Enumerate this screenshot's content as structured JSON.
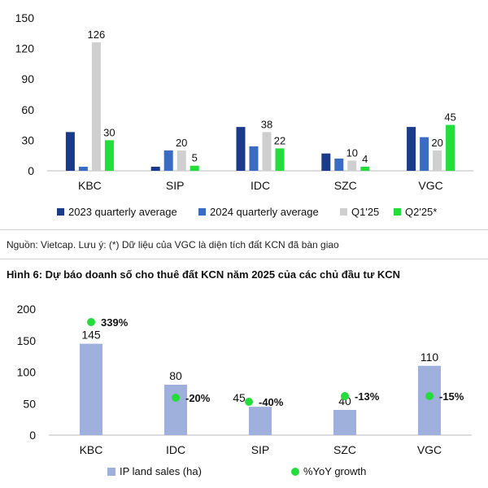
{
  "note": "Nguồn: Vietcap. Lưu ý: (*) Dữ liệu của VGC là diện tích đất KCN đã bàn giao",
  "figure_title": "Hình 6: Dự báo doanh số cho thuê đất KCN năm 2025 của các chủ đầu tư KCN",
  "colors": {
    "dark_blue": "#1a3a8c",
    "mid_blue": "#3b6cc4",
    "light_gray": "#cfcfcf",
    "green": "#22dd3a",
    "lavender": "#9fb0dc"
  },
  "chart_data": [
    {
      "type": "bar",
      "categories": [
        "KBC",
        "SIP",
        "IDC",
        "SZC",
        "VGC"
      ],
      "yticks": [
        "0",
        "30",
        "60",
        "90",
        "120",
        "150"
      ],
      "ylim": [
        0,
        150
      ],
      "series": [
        {
          "name": "2023 quarterly average",
          "color": "#1a3a8c",
          "values": [
            38,
            4,
            43,
            17,
            43
          ],
          "labels": [
            "",
            "",
            "",
            "",
            ""
          ]
        },
        {
          "name": "2024 quarterly average",
          "color": "#3b6cc4",
          "values": [
            4,
            20,
            24,
            12,
            33
          ],
          "labels": [
            "",
            "",
            "",
            "",
            ""
          ]
        },
        {
          "name": "Q1'25",
          "color": "#cfcfcf",
          "values": [
            126,
            20,
            38,
            10,
            20
          ],
          "labels": [
            "126",
            "20",
            "38",
            "10",
            "20"
          ]
        },
        {
          "name": "Q2'25*",
          "color": "#22dd3a",
          "values": [
            30,
            5,
            22,
            4,
            45
          ],
          "labels": [
            "30",
            "5",
            "22",
            "4",
            "45"
          ]
        }
      ]
    },
    {
      "type": "bar",
      "categories": [
        "KBC",
        "IDC",
        "SIP",
        "SZC",
        "VGC"
      ],
      "yticks": [
        "0",
        "50",
        "100",
        "150",
        "200"
      ],
      "ylim": [
        0,
        200
      ],
      "series": [
        {
          "name": "IP land sales (ha)",
          "type": "bar",
          "color": "#9fb0dc",
          "values": [
            145,
            80,
            45,
            40,
            110
          ],
          "labels": [
            "145",
            "80",
            "45",
            "40",
            "110"
          ]
        },
        {
          "name": "%YoY growth",
          "type": "scatter",
          "color": "#22dd3a",
          "labels": [
            "339%",
            "-20%",
            "-40%",
            "-13%",
            "-15%"
          ]
        }
      ]
    }
  ]
}
